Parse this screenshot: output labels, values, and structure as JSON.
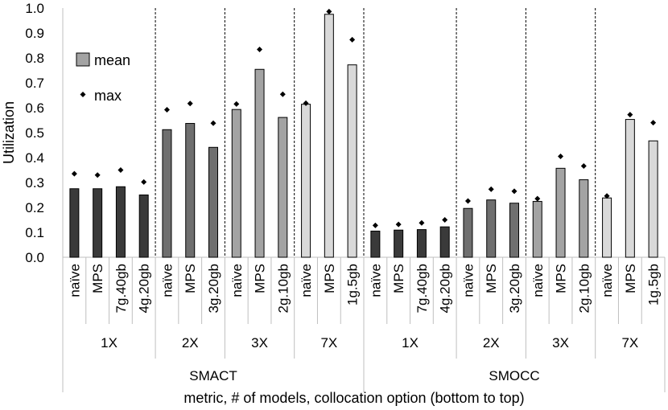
{
  "chart_data": {
    "type": "bar",
    "ylabel": "Utilization",
    "xlabel": "metric, # of models, collocation option (bottom to top)",
    "ylim": [
      0,
      1.0
    ],
    "yticks": [
      "0.0",
      "0.1",
      "0.2",
      "0.3",
      "0.4",
      "0.5",
      "0.6",
      "0.7",
      "0.8",
      "0.9",
      "1.0"
    ],
    "legend": {
      "position": "top-left",
      "mean_label": "mean",
      "max_label": "max"
    },
    "metrics": [
      {
        "name": "SMACT",
        "groups": [
          {
            "models": "1X",
            "shade": "#3a3a3a",
            "bars": [
              {
                "option": "naïve",
                "mean": 0.275,
                "max": 0.335
              },
              {
                "option": "MPS",
                "mean": 0.275,
                "max": 0.33
              },
              {
                "option": "7g.40gb",
                "mean": 0.283,
                "max": 0.35
              },
              {
                "option": "4g.20gb",
                "mean": 0.25,
                "max": 0.302
              }
            ]
          },
          {
            "models": "2X",
            "shade": "#6f6f6f",
            "bars": [
              {
                "option": "naïve",
                "mean": 0.512,
                "max": 0.592
              },
              {
                "option": "MPS",
                "mean": 0.537,
                "max": 0.617
              },
              {
                "option": "3g.20gb",
                "mean": 0.441,
                "max": 0.538
              }
            ]
          },
          {
            "models": "3X",
            "shade": "#a3a3a3",
            "bars": [
              {
                "option": "naïve",
                "mean": 0.593,
                "max": 0.615
              },
              {
                "option": "MPS",
                "mean": 0.754,
                "max": 0.834
              },
              {
                "option": "2g.10gb",
                "mean": 0.561,
                "max": 0.654
              }
            ]
          },
          {
            "models": "7X",
            "shade": "#d9d9d9",
            "bars": [
              {
                "option": "naïve",
                "mean": 0.614,
                "max": 0.618
              },
              {
                "option": "MPS",
                "mean": 0.975,
                "max": 0.986
              },
              {
                "option": "1g.5gb",
                "mean": 0.772,
                "max": 0.873
              }
            ]
          }
        ]
      },
      {
        "name": "SMOCC",
        "groups": [
          {
            "models": "1X",
            "shade": "#3a3a3a",
            "bars": [
              {
                "option": "naïve",
                "mean": 0.105,
                "max": 0.128
              },
              {
                "option": "MPS",
                "mean": 0.109,
                "max": 0.132
              },
              {
                "option": "7g.40gb",
                "mean": 0.111,
                "max": 0.138
              },
              {
                "option": "4g.20gb",
                "mean": 0.122,
                "max": 0.15
              }
            ]
          },
          {
            "models": "2X",
            "shade": "#6f6f6f",
            "bars": [
              {
                "option": "naïve",
                "mean": 0.196,
                "max": 0.226
              },
              {
                "option": "MPS",
                "mean": 0.23,
                "max": 0.273
              },
              {
                "option": "3g.20gb",
                "mean": 0.217,
                "max": 0.265
              }
            ]
          },
          {
            "models": "3X",
            "shade": "#a3a3a3",
            "bars": [
              {
                "option": "naïve",
                "mean": 0.224,
                "max": 0.235
              },
              {
                "option": "MPS",
                "mean": 0.357,
                "max": 0.405
              },
              {
                "option": "2g.10gb",
                "mean": 0.311,
                "max": 0.366
              }
            ]
          },
          {
            "models": "7X",
            "shade": "#d9d9d9",
            "bars": [
              {
                "option": "naïve",
                "mean": 0.238,
                "max": 0.246
              },
              {
                "option": "MPS",
                "mean": 0.553,
                "max": 0.572
              },
              {
                "option": "1g.5gb",
                "mean": 0.467,
                "max": 0.54
              }
            ]
          }
        ]
      }
    ]
  }
}
